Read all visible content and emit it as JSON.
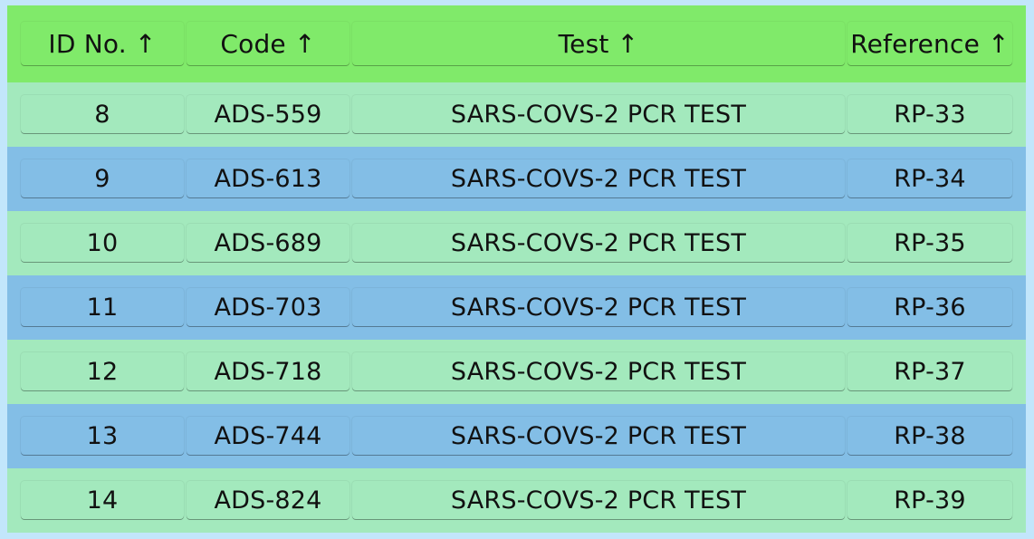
{
  "header": {
    "columns": [
      {
        "label": "ID No. ↑"
      },
      {
        "label": "Code ↑"
      },
      {
        "label": "Test ↑"
      },
      {
        "label": "Reference ↑"
      }
    ]
  },
  "rows": [
    {
      "id": "8",
      "code": "ADS-559",
      "test": "SARS-COVS-2 PCR TEST",
      "ref": "RP-33"
    },
    {
      "id": "9",
      "code": "ADS-613",
      "test": "SARS-COVS-2 PCR TEST",
      "ref": "RP-34"
    },
    {
      "id": "10",
      "code": "ADS-689",
      "test": "SARS-COVS-2 PCR TEST",
      "ref": "RP-35"
    },
    {
      "id": "11",
      "code": "ADS-703",
      "test": "SARS-COVS-2 PCR TEST",
      "ref": "RP-36"
    },
    {
      "id": "12",
      "code": "ADS-718",
      "test": "SARS-COVS-2 PCR TEST",
      "ref": "RP-37"
    },
    {
      "id": "13",
      "code": "ADS-744",
      "test": "SARS-COVS-2 PCR TEST",
      "ref": "RP-38"
    },
    {
      "id": "14",
      "code": "ADS-824",
      "test": "SARS-COVS-2 PCR TEST",
      "ref": "RP-39"
    }
  ],
  "colors": {
    "header_bg": "#80ea6a",
    "row_even_bg": "#a3e9bd",
    "row_odd_bg": "#83bee6",
    "page_bg": "#c2e6fb"
  }
}
